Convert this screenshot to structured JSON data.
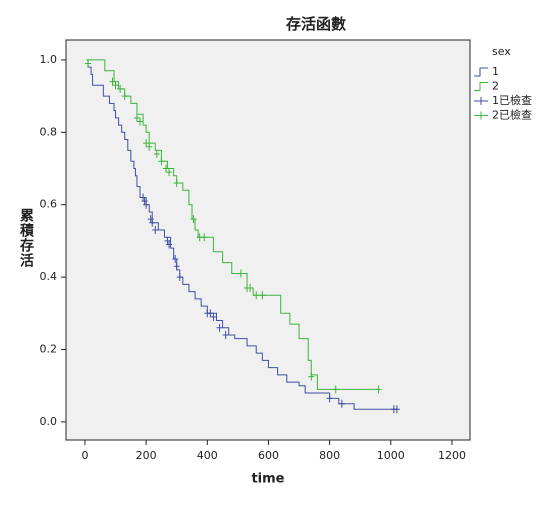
{
  "chart_data": {
    "type": "step",
    "title": "存活函數",
    "xlabel": "time",
    "ylabel": "累積存活",
    "legend_title": "sex",
    "legend": "right",
    "grid": false,
    "background": "#f0f0f0",
    "xlim": [
      -62,
      1259
    ],
    "ylim": [
      -0.05,
      1.055
    ],
    "xticks": [
      0,
      200,
      400,
      600,
      800,
      1000,
      1200
    ],
    "yticks": [
      {
        "value": 0,
        "label": "0.0"
      },
      0.2,
      0.4,
      0.6,
      0.8,
      {
        "value": 1,
        "label": "1.0"
      }
    ],
    "series": [
      {
        "name": "1",
        "color": "#3f4fa3",
        "marker": "step",
        "x": [
          5,
          10,
          20,
          25,
          60,
          80,
          95,
          100,
          110,
          120,
          130,
          140,
          150,
          160,
          165,
          170,
          180,
          200,
          210,
          220,
          240,
          260,
          280,
          290,
          300,
          310,
          320,
          340,
          360,
          380,
          400,
          430,
          450,
          470,
          490,
          530,
          560,
          580,
          600,
          630,
          660,
          700,
          720,
          800,
          830,
          880,
          1020
        ],
        "values": [
          1.0,
          0.98,
          0.96,
          0.93,
          0.9,
          0.88,
          0.86,
          0.84,
          0.82,
          0.8,
          0.78,
          0.75,
          0.72,
          0.7,
          0.68,
          0.65,
          0.62,
          0.6,
          0.58,
          0.55,
          0.53,
          0.51,
          0.48,
          0.45,
          0.42,
          0.4,
          0.38,
          0.36,
          0.34,
          0.32,
          0.3,
          0.28,
          0.26,
          0.24,
          0.23,
          0.21,
          0.19,
          0.17,
          0.15,
          0.13,
          0.11,
          0.1,
          0.08,
          0.065,
          0.05,
          0.035,
          0.035
        ]
      },
      {
        "name": "2",
        "color": "#3cb43c",
        "marker": "step",
        "x": [
          5,
          65,
          95,
          110,
          130,
          150,
          170,
          190,
          200,
          210,
          230,
          250,
          270,
          290,
          300,
          320,
          340,
          350,
          360,
          370,
          420,
          450,
          480,
          530,
          550,
          640,
          670,
          700,
          730,
          740,
          760,
          960
        ],
        "values": [
          1.0,
          0.97,
          0.94,
          0.92,
          0.9,
          0.88,
          0.85,
          0.82,
          0.8,
          0.77,
          0.75,
          0.72,
          0.7,
          0.68,
          0.66,
          0.64,
          0.6,
          0.56,
          0.53,
          0.51,
          0.47,
          0.44,
          0.41,
          0.37,
          0.35,
          0.3,
          0.27,
          0.23,
          0.17,
          0.13,
          0.09,
          0.09
        ]
      },
      {
        "name": "1已檢查",
        "color": "#3f4fa3",
        "marker": "+",
        "x": [
          190,
          195,
          200,
          215,
          220,
          230,
          270,
          275,
          295,
          300,
          310,
          400,
          410,
          420,
          440,
          460,
          800,
          840,
          1010,
          1020
        ],
        "values": [
          0.62,
          0.61,
          0.6,
          0.56,
          0.55,
          0.53,
          0.5,
          0.49,
          0.45,
          0.43,
          0.4,
          0.3,
          0.3,
          0.29,
          0.26,
          0.24,
          0.065,
          0.05,
          0.035,
          0.035
        ]
      },
      {
        "name": "2已檢查",
        "color": "#3cb43c",
        "marker": "+",
        "x": [
          10,
          90,
          100,
          115,
          130,
          170,
          180,
          200,
          210,
          235,
          250,
          265,
          275,
          300,
          355,
          375,
          390,
          510,
          530,
          540,
          560,
          580,
          740,
          820,
          960
        ],
        "values": [
          0.99,
          0.94,
          0.93,
          0.92,
          0.9,
          0.84,
          0.83,
          0.77,
          0.76,
          0.74,
          0.72,
          0.7,
          0.69,
          0.66,
          0.56,
          0.51,
          0.51,
          0.41,
          0.37,
          0.37,
          0.35,
          0.35,
          0.125,
          0.09,
          0.09
        ]
      }
    ]
  }
}
